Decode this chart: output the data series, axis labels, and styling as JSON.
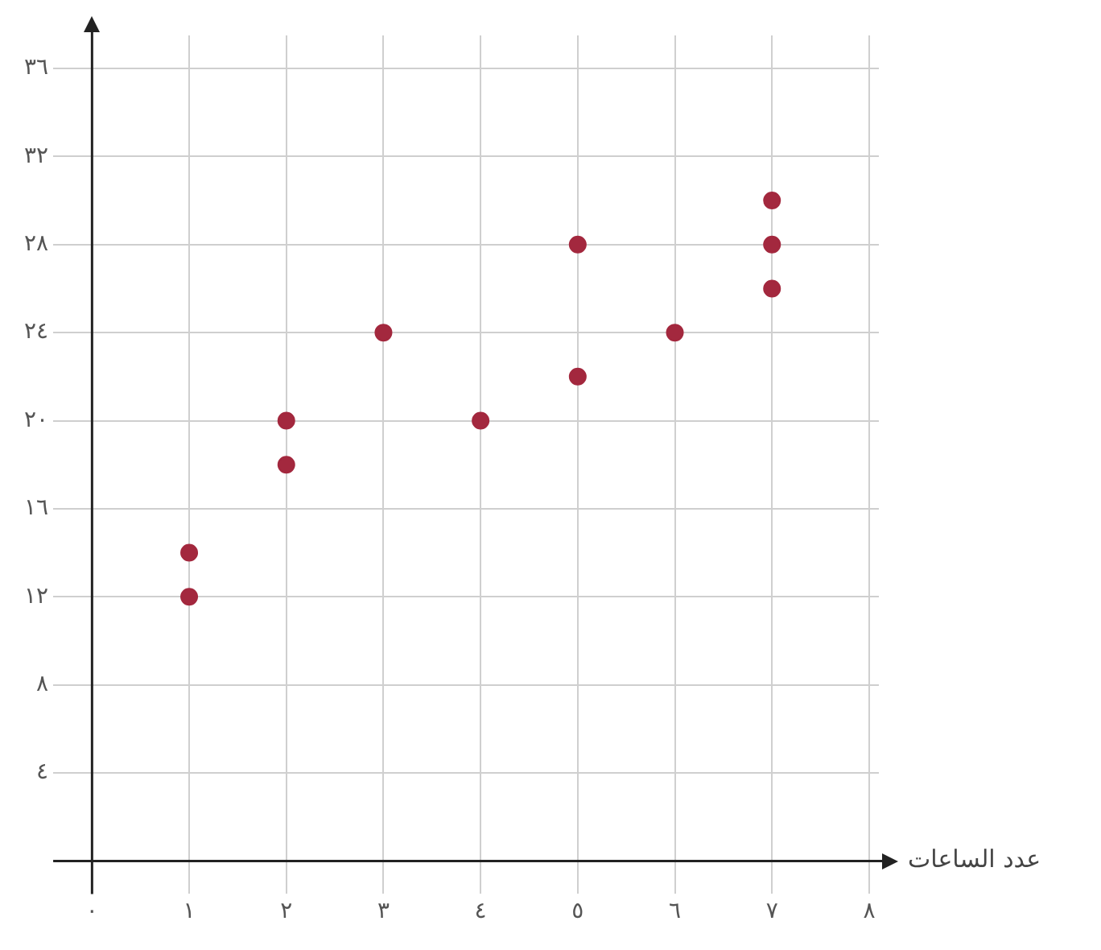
{
  "chart_data": {
    "type": "scatter",
    "xlabel": "عدد الساعات",
    "x": [
      1,
      1,
      2,
      2,
      3,
      4,
      5,
      5,
      6,
      7,
      7,
      7
    ],
    "values": [
      12,
      14,
      18,
      20,
      24,
      20,
      22,
      28,
      24,
      26,
      28,
      30
    ],
    "color": "#a3283e",
    "marker": "circle",
    "grid": true,
    "xlim": [
      -0.4,
      8.1
    ],
    "ylim": [
      -1.5,
      37.5
    ],
    "xticks": [
      {
        "value": 0,
        "label": "٠"
      },
      {
        "value": 1,
        "label": "١"
      },
      {
        "value": 2,
        "label": "٢"
      },
      {
        "value": 3,
        "label": "٣"
      },
      {
        "value": 4,
        "label": "٤"
      },
      {
        "value": 5,
        "label": "٥"
      },
      {
        "value": 6,
        "label": "٦"
      },
      {
        "value": 7,
        "label": "٧"
      },
      {
        "value": 8,
        "label": "٨"
      }
    ],
    "yticks": [
      {
        "value": 0,
        "label": null
      },
      {
        "value": 4,
        "label": "٤"
      },
      {
        "value": 8,
        "label": "٨"
      },
      {
        "value": 12,
        "label": "١٢"
      },
      {
        "value": 16,
        "label": "١٦"
      },
      {
        "value": 20,
        "label": "٢٠"
      },
      {
        "value": 24,
        "label": "٢٤"
      },
      {
        "value": 28,
        "label": "٢٨"
      },
      {
        "value": 32,
        "label": "٣٢"
      },
      {
        "value": 36,
        "label": "٣٦"
      }
    ]
  }
}
